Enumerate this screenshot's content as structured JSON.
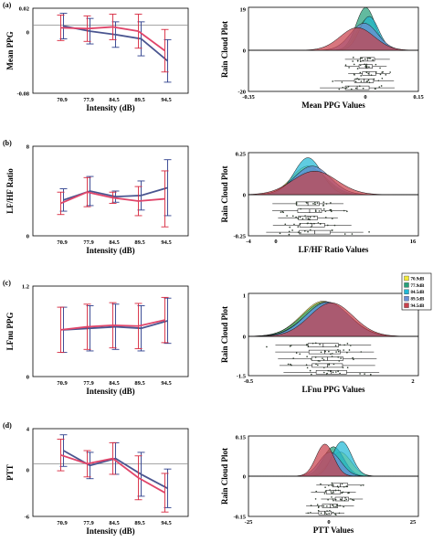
{
  "panels": [
    {
      "label": "(a)",
      "left": {
        "ylabel": "Mean PPG",
        "yticks": [
          "0.02",
          "0",
          "-0.08"
        ]
      },
      "right": {
        "ylabel": "Rain Cloud Plot",
        "xlabel": "Mean PPG Values",
        "xticks": [
          "-0.35",
          "0",
          "0.15"
        ],
        "yticks": [
          "19",
          "0",
          "-20"
        ]
      }
    },
    {
      "label": "(b)",
      "left": {
        "ylabel": "LF/HF Ratio",
        "yticks": [
          "8",
          "0"
        ]
      },
      "right": {
        "ylabel": "Rain Cloud Plot",
        "xlabel": "LF/HF Ratio Values",
        "xticks": [
          "-4",
          "0",
          "16"
        ],
        "yticks": [
          "0.25",
          "0",
          "-0.25"
        ]
      }
    },
    {
      "label": "(c)",
      "left": {
        "ylabel": "LFnu PPG",
        "yticks": [
          "1.2",
          "0"
        ]
      },
      "right": {
        "ylabel": "Rain Cloud Plot",
        "xlabel": "LFnu PPG Values",
        "xticks": [
          "-0.5",
          "2"
        ],
        "yticks": [
          "1",
          "0",
          "-1.5"
        ]
      }
    },
    {
      "label": "(d)",
      "left": {
        "ylabel": "PTT",
        "yticks": [
          "4",
          "0",
          "-6"
        ]
      },
      "right": {
        "ylabel": "Rain Cloud Plot",
        "xlabel": "PTT Values",
        "xticks": [
          "-25",
          "0",
          "25"
        ],
        "yticks": [
          "0.15",
          "0",
          "-0.15"
        ]
      }
    }
  ],
  "legend": [
    "70.9dB",
    "77.9dB",
    "84.5dB",
    "89.5dB",
    "94.5dB"
  ],
  "colors": {
    "blue": "#4a5590",
    "red": "#e0456a",
    "err_red": "#d7263d",
    "err_blue": "#2c3e8c",
    "zero": "#888888",
    "density": [
      "#f2e93a",
      "#26a07a",
      "#21b8d6",
      "#6b8fd6",
      "#c9414c"
    ]
  },
  "chart_data": [
    {
      "type": "line",
      "xlabel": "Intensity (dB)",
      "ylabel": "Mean PPG",
      "categories": [
        "70.9",
        "77.9",
        "84.5",
        "89.5",
        "94.5"
      ],
      "ylim": [
        -0.08,
        0.02
      ],
      "series": [
        {
          "values": [
            -0.001,
            -0.007,
            -0.011,
            -0.016,
            -0.042
          ],
          "err": [
            0.015,
            0.015,
            0.015,
            0.02,
            0.025
          ]
        },
        {
          "values": [
            -0.003,
            -0.004,
            -0.002,
            -0.007,
            -0.03
          ],
          "err": [
            0.015,
            0.015,
            0.015,
            0.02,
            0.025
          ]
        }
      ]
    },
    {
      "type": "line",
      "xlabel": "Intensity (dB)",
      "ylabel": "LF/HF Ratio",
      "categories": [
        "70.9",
        "77.9",
        "84.5",
        "89.5",
        "94.5"
      ],
      "ylim": [
        0,
        8
      ],
      "series": [
        {
          "values": [
            3.2,
            4.0,
            3.5,
            3.6,
            4.3
          ],
          "err": [
            1.0,
            1.3,
            0.5,
            1.3,
            2.5
          ]
        },
        {
          "values": [
            2.9,
            3.9,
            3.4,
            3.1,
            3.3
          ],
          "err": [
            1.0,
            1.3,
            0.5,
            1.3,
            2.5
          ]
        }
      ]
    },
    {
      "type": "line",
      "xlabel": "Intensity (dB)",
      "ylabel": "LFnu PPG",
      "categories": [
        "70.9",
        "77.9",
        "84.5",
        "89.5",
        "94.5"
      ],
      "ylim": [
        0,
        1.2
      ],
      "series": [
        {
          "values": [
            0.62,
            0.64,
            0.66,
            0.64,
            0.74
          ],
          "err": [
            0.3,
            0.3,
            0.3,
            0.3,
            0.3
          ]
        },
        {
          "values": [
            0.62,
            0.66,
            0.68,
            0.67,
            0.75
          ],
          "err": [
            0.3,
            0.3,
            0.3,
            0.3,
            0.3
          ]
        }
      ]
    },
    {
      "type": "line",
      "xlabel": "Intensity (dB)",
      "ylabel": "PTT",
      "categories": [
        "70.9",
        "77.9",
        "84.5",
        "89.5",
        "94.5"
      ],
      "ylim": [
        -6,
        4
      ],
      "series": [
        {
          "values": [
            1.5,
            -0.2,
            0.6,
            -1.2,
            -2.8
          ],
          "err": [
            1.8,
            1.5,
            1.8,
            2.5,
            2.2
          ]
        },
        {
          "values": [
            1.0,
            0.0,
            0.6,
            -1.6,
            -3.3
          ],
          "err": [
            1.8,
            1.5,
            1.8,
            2.5,
            2.2
          ]
        }
      ]
    },
    {
      "type": "area",
      "ylabel": "Rain Cloud Plot",
      "xlabel": "Mean PPG Values",
      "xlim": [
        -0.35,
        0.15
      ],
      "ylim": [
        -20,
        19
      ],
      "series": [
        {
          "name": "70.9dB",
          "peak": 0.0,
          "height": 14,
          "width": 0.03
        },
        {
          "name": "77.9dB",
          "peak": -0.005,
          "height": 19,
          "width": 0.028
        },
        {
          "name": "84.5dB",
          "peak": 0.005,
          "height": 15,
          "width": 0.028
        },
        {
          "name": "89.5dB",
          "peak": -0.01,
          "height": 12,
          "width": 0.04
        },
        {
          "name": "94.5dB",
          "peak": -0.03,
          "height": 10,
          "width": 0.05
        }
      ]
    },
    {
      "type": "area",
      "ylabel": "Rain Cloud Plot",
      "xlabel": "LF/HF Ratio Values",
      "xlim": [
        -4,
        16
      ],
      "ylim": [
        -0.25,
        0.25
      ],
      "series": [
        {
          "name": "70.9dB",
          "peak": 3.0,
          "height": 0.17,
          "width": 1.9
        },
        {
          "name": "77.9dB",
          "peak": 3.2,
          "height": 0.16,
          "width": 2.0
        },
        {
          "name": "84.5dB",
          "peak": 3.0,
          "height": 0.22,
          "width": 1.6
        },
        {
          "name": "89.5dB",
          "peak": 3.5,
          "height": 0.17,
          "width": 2.1
        },
        {
          "name": "94.5dB",
          "peak": 3.8,
          "height": 0.14,
          "width": 2.6
        }
      ]
    },
    {
      "type": "area",
      "ylabel": "Rain Cloud Plot",
      "xlabel": "LFnu PPG Values",
      "xlim": [
        -0.5,
        2
      ],
      "ylim": [
        -1.5,
        1
      ],
      "series": [
        {
          "name": "70.9dB",
          "peak": 0.6,
          "height": 0.82,
          "width": 0.32
        },
        {
          "name": "77.9dB",
          "peak": 0.62,
          "height": 0.8,
          "width": 0.33
        },
        {
          "name": "84.5dB",
          "peak": 0.66,
          "height": 0.78,
          "width": 0.33
        },
        {
          "name": "89.5dB",
          "peak": 0.66,
          "height": 0.8,
          "width": 0.32
        },
        {
          "name": "94.5dB",
          "peak": 0.72,
          "height": 0.78,
          "width": 0.32
        }
      ]
    },
    {
      "type": "area",
      "ylabel": "Rain Cloud Plot",
      "xlabel": "PTT Values",
      "xlim": [
        -25,
        25
      ],
      "ylim": [
        -0.15,
        0.15
      ],
      "series": [
        {
          "name": "70.9dB",
          "peak": 2.0,
          "height": 0.09,
          "width": 3.2
        },
        {
          "name": "77.9dB",
          "peak": 0.0,
          "height": 0.11,
          "width": 3.0
        },
        {
          "name": "84.5dB",
          "peak": 2.5,
          "height": 0.13,
          "width": 2.8
        },
        {
          "name": "89.5dB",
          "peak": -1.0,
          "height": 0.09,
          "width": 3.2
        },
        {
          "name": "94.5dB",
          "peak": -2.5,
          "height": 0.12,
          "width": 2.6
        }
      ]
    }
  ]
}
